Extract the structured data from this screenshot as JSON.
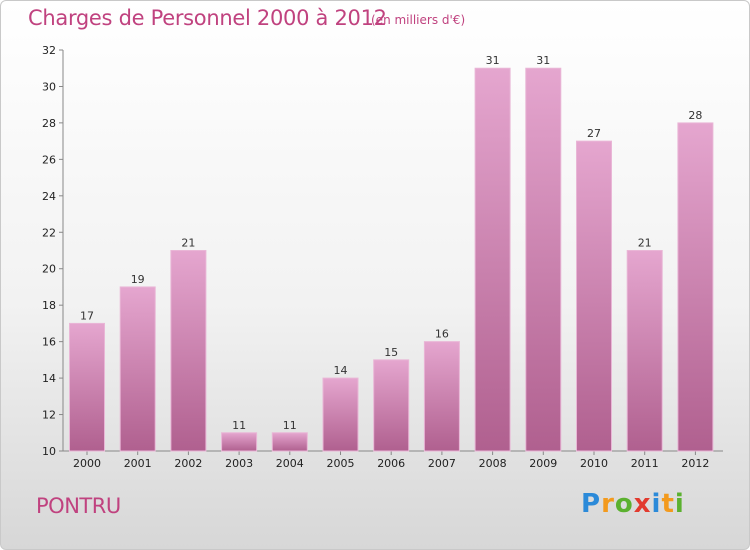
{
  "chart_data": {
    "type": "bar",
    "title": "Charges de Personnel 2000 à 2012",
    "subtitle": "(en milliers d'€)",
    "categories": [
      "2000",
      "2001",
      "2002",
      "2003",
      "2004",
      "2005",
      "2006",
      "2007",
      "2008",
      "2009",
      "2010",
      "2011",
      "2012"
    ],
    "values": [
      17,
      19,
      21,
      11,
      11,
      14,
      15,
      16,
      31,
      31,
      27,
      21,
      28
    ],
    "ylim": [
      10,
      32
    ],
    "yticks": [
      10,
      12,
      14,
      16,
      18,
      20,
      22,
      24,
      26,
      28,
      30,
      32
    ],
    "xlabel": "",
    "ylabel": "",
    "grid": false,
    "bar_color": "#d98bb8"
  },
  "location": "PONTRU",
  "logo": {
    "letters": [
      "P",
      "r",
      "o",
      "x",
      "i",
      "t",
      "i"
    ],
    "colors": [
      "#2b8ad9",
      "#f39a1d",
      "#5bb12f",
      "#e23a2e",
      "#2b8ad9",
      "#f39a1d",
      "#5bb12f"
    ]
  }
}
